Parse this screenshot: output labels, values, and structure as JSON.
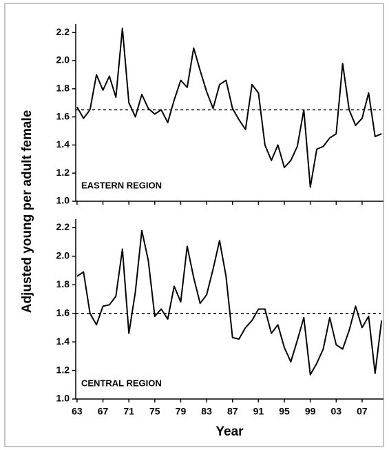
{
  "chart_data": [
    {
      "type": "line",
      "annotation": "EASTERN REGION",
      "ylabel": "Adjusted young per adult female",
      "x": [
        1963,
        1964,
        1965,
        1966,
        1967,
        1968,
        1969,
        1970,
        1971,
        1972,
        1973,
        1974,
        1975,
        1976,
        1977,
        1978,
        1979,
        1980,
        1981,
        1982,
        1983,
        1984,
        1985,
        1986,
        1987,
        1988,
        1989,
        1990,
        1991,
        1992,
        1993,
        1994,
        1995,
        1996,
        1997,
        1998,
        1999,
        2000,
        2001,
        2002,
        2003,
        2004,
        2005,
        2006,
        2007,
        2008,
        2009,
        2010
      ],
      "series": [
        {
          "color": "#000000",
          "values": [
            1.67,
            1.59,
            1.65,
            1.9,
            1.79,
            1.89,
            1.74,
            2.23,
            1.7,
            1.6,
            1.76,
            1.66,
            1.62,
            1.65,
            1.56,
            1.72,
            1.86,
            1.81,
            2.09,
            1.93,
            1.78,
            1.66,
            1.83,
            1.86,
            1.66,
            1.58,
            1.51,
            1.83,
            1.77,
            1.4,
            1.29,
            1.4,
            1.24,
            1.29,
            1.39,
            1.65,
            1.1,
            1.37,
            1.39,
            1.45,
            1.48,
            1.98,
            1.65,
            1.54,
            1.59,
            1.77,
            1.46,
            1.48
          ]
        }
      ],
      "reference": 1.65,
      "xlim": [
        1962.8,
        2010.3
      ],
      "ylim": [
        1.0,
        2.26
      ],
      "yticks": [
        {
          "value": 1.0,
          "label": "1.0"
        },
        1.2,
        1.4,
        1.6,
        1.8,
        {
          "value": 2.0,
          "label": "2.0"
        },
        2.2
      ]
    },
    {
      "type": "line",
      "annotation": "CENTRAL REGION",
      "xlabel": "Year",
      "x": [
        1963,
        1964,
        1965,
        1966,
        1967,
        1968,
        1969,
        1970,
        1971,
        1972,
        1973,
        1974,
        1975,
        1976,
        1977,
        1978,
        1979,
        1980,
        1981,
        1982,
        1983,
        1984,
        1985,
        1986,
        1987,
        1988,
        1989,
        1990,
        1991,
        1992,
        1993,
        1994,
        1995,
        1996,
        1997,
        1998,
        1999,
        2000,
        2001,
        2002,
        2003,
        2004,
        2005,
        2006,
        2007,
        2008,
        2009,
        2010
      ],
      "series": [
        {
          "color": "#000000",
          "values": [
            1.86,
            1.89,
            1.6,
            1.52,
            1.65,
            1.66,
            1.72,
            2.05,
            1.46,
            1.75,
            2.18,
            1.97,
            1.58,
            1.63,
            1.56,
            1.79,
            1.68,
            2.07,
            1.85,
            1.67,
            1.73,
            1.91,
            2.11,
            1.86,
            1.43,
            1.42,
            1.5,
            1.55,
            1.63,
            1.63,
            1.46,
            1.52,
            1.36,
            1.26,
            1.41,
            1.57,
            1.17,
            1.25,
            1.35,
            1.57,
            1.38,
            1.35,
            1.48,
            1.65,
            1.5,
            1.58,
            1.18,
            1.55
          ]
        }
      ],
      "reference": 1.6,
      "xlim": [
        1962.8,
        2010.3
      ],
      "ylim": [
        1.0,
        2.26
      ],
      "xticks": [
        {
          "value": 1963,
          "label": "63"
        },
        {
          "value": 1967,
          "label": "67"
        },
        {
          "value": 1971,
          "label": "71"
        },
        {
          "value": 1975,
          "label": "75"
        },
        {
          "value": 1979,
          "label": "79"
        },
        {
          "value": 1983,
          "label": "83"
        },
        {
          "value": 1987,
          "label": "87"
        },
        {
          "value": 1991,
          "label": "91"
        },
        {
          "value": 1995,
          "label": "95"
        },
        {
          "value": 1999,
          "label": "99"
        },
        {
          "value": 2003,
          "label": "03"
        },
        {
          "value": 2007,
          "label": "07"
        }
      ],
      "yticks": [
        {
          "value": 1.0,
          "label": "1.0"
        },
        1.2,
        1.4,
        1.6,
        1.8,
        {
          "value": 2.0,
          "label": "2.0"
        },
        2.2
      ]
    }
  ]
}
